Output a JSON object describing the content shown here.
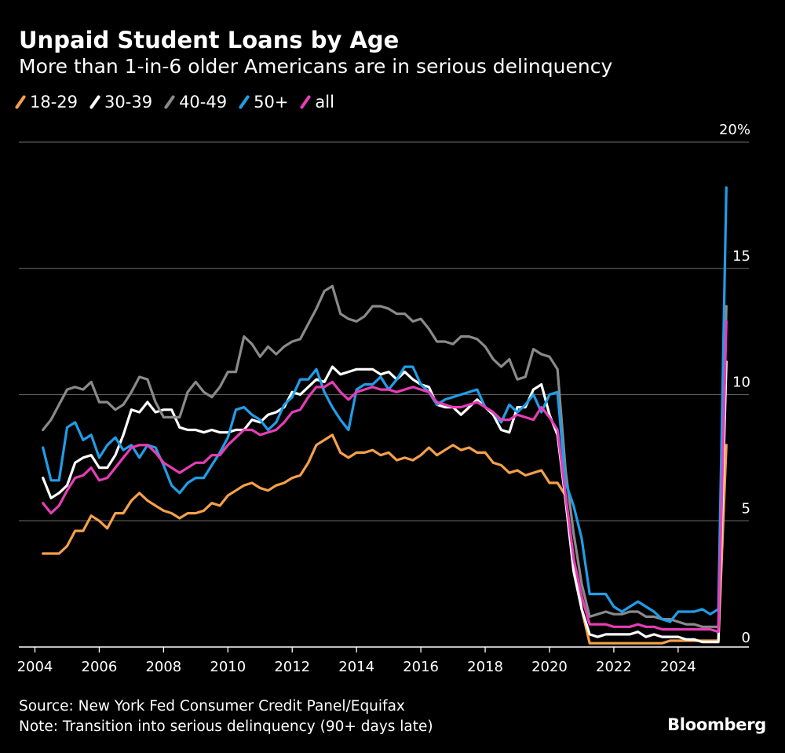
{
  "header": {
    "title": "Unpaid Student Loans by Age",
    "subtitle": "More than 1-in-6 older Americans are in serious delinquency"
  },
  "footer": {
    "source": "Source: New York Fed Consumer Credit Panel/Equifax",
    "note": "Note: Transition into serious delinquency (90+ days late)",
    "logo": "Bloomberg"
  },
  "chart_data": {
    "type": "line",
    "y_unit": "%",
    "ylim": [
      0,
      20
    ],
    "y_ticks": [
      0,
      5,
      10,
      15,
      20
    ],
    "y_tick_labels": [
      "0",
      "5",
      "10",
      "15",
      "20%"
    ],
    "xlim": [
      2003.5,
      2026.2
    ],
    "x_ticks": [
      2004,
      2006,
      2008,
      2010,
      2012,
      2014,
      2016,
      2018,
      2020,
      2022,
      2024
    ],
    "x_tick_labels": [
      "2004",
      "2006",
      "2008",
      "2010",
      "2012",
      "2014",
      "2016",
      "2018",
      "2020",
      "2022",
      "2024"
    ],
    "grid": "horizontal",
    "legend_position": "top-left",
    "x": [
      2004.25,
      2004.5,
      2004.75,
      2005.0,
      2005.25,
      2005.5,
      2005.75,
      2006.0,
      2006.25,
      2006.5,
      2006.75,
      2007.0,
      2007.25,
      2007.5,
      2007.75,
      2008.0,
      2008.25,
      2008.5,
      2008.75,
      2009.0,
      2009.25,
      2009.5,
      2009.75,
      2010.0,
      2010.25,
      2010.5,
      2010.75,
      2011.0,
      2011.25,
      2011.5,
      2011.75,
      2012.0,
      2012.25,
      2012.5,
      2012.75,
      2013.0,
      2013.25,
      2013.5,
      2013.75,
      2014.0,
      2014.25,
      2014.5,
      2014.75,
      2015.0,
      2015.25,
      2015.5,
      2015.75,
      2016.0,
      2016.25,
      2016.5,
      2016.75,
      2017.0,
      2017.25,
      2017.5,
      2017.75,
      2018.0,
      2018.25,
      2018.5,
      2018.75,
      2019.0,
      2019.25,
      2019.5,
      2019.75,
      2020.0,
      2020.25,
      2020.5,
      2020.75,
      2021.0,
      2021.25,
      2021.5,
      2021.75,
      2022.0,
      2022.25,
      2022.5,
      2022.75,
      2023.0,
      2023.25,
      2023.5,
      2023.75,
      2024.0,
      2024.25,
      2024.5,
      2024.75,
      2025.0,
      2025.25,
      2025.5
    ],
    "series": [
      {
        "name": "18-29",
        "color": "#f5a04a",
        "values": [
          3.7,
          3.7,
          3.7,
          4.0,
          4.6,
          4.6,
          5.2,
          5.0,
          4.7,
          5.3,
          5.3,
          5.8,
          6.1,
          5.8,
          5.6,
          5.4,
          5.3,
          5.1,
          5.3,
          5.3,
          5.4,
          5.7,
          5.6,
          6.0,
          6.2,
          6.4,
          6.5,
          6.3,
          6.2,
          6.4,
          6.5,
          6.7,
          6.8,
          7.3,
          8.0,
          8.2,
          8.4,
          7.7,
          7.5,
          7.7,
          7.7,
          7.8,
          7.6,
          7.7,
          7.4,
          7.5,
          7.4,
          7.6,
          7.9,
          7.6,
          7.8,
          8.0,
          7.8,
          7.9,
          7.7,
          7.7,
          7.3,
          7.2,
          6.9,
          7.0,
          6.8,
          6.9,
          7.0,
          6.5,
          6.5,
          6.0,
          3.5,
          1.5,
          0.15,
          0.15,
          0.15,
          0.15,
          0.15,
          0.15,
          0.15,
          0.15,
          0.15,
          0.15,
          0.25,
          0.25,
          0.25,
          0.25,
          0.25,
          0.25,
          0.25,
          8.0
        ]
      },
      {
        "name": "30-39",
        "color": "#ffffff",
        "values": [
          6.7,
          5.9,
          6.1,
          6.4,
          7.3,
          7.5,
          7.6,
          7.1,
          7.1,
          7.6,
          8.4,
          9.4,
          9.3,
          9.7,
          9.3,
          9.4,
          9.4,
          8.7,
          8.6,
          8.6,
          8.5,
          8.6,
          8.5,
          8.5,
          8.6,
          8.6,
          9.0,
          8.9,
          9.2,
          9.3,
          9.5,
          10.1,
          10.0,
          10.3,
          10.6,
          10.5,
          11.1,
          10.8,
          10.9,
          11.0,
          11.0,
          11.0,
          10.8,
          10.9,
          10.6,
          10.9,
          10.6,
          10.4,
          10.3,
          9.6,
          9.5,
          9.5,
          9.2,
          9.5,
          9.8,
          9.5,
          9.2,
          8.6,
          8.5,
          9.5,
          9.5,
          10.2,
          10.4,
          9.2,
          8.4,
          5.8,
          3.0,
          1.5,
          0.5,
          0.4,
          0.5,
          0.5,
          0.5,
          0.5,
          0.6,
          0.4,
          0.5,
          0.4,
          0.4,
          0.4,
          0.3,
          0.3,
          0.2,
          0.2,
          0.2,
          11.3
        ]
      },
      {
        "name": "40-49",
        "color": "#8a8a8a",
        "values": [
          8.6,
          9.0,
          9.6,
          10.2,
          10.3,
          10.2,
          10.5,
          9.7,
          9.7,
          9.4,
          9.6,
          10.1,
          10.7,
          10.6,
          9.7,
          9.1,
          9.1,
          9.1,
          10.1,
          10.5,
          10.1,
          9.9,
          10.3,
          10.9,
          10.9,
          12.3,
          12.0,
          11.5,
          11.9,
          11.6,
          11.9,
          12.1,
          12.2,
          12.8,
          13.4,
          14.1,
          14.3,
          13.2,
          13.0,
          12.9,
          13.1,
          13.5,
          13.5,
          13.4,
          13.2,
          13.2,
          12.9,
          13.0,
          12.6,
          12.1,
          12.1,
          12.0,
          12.3,
          12.3,
          12.2,
          11.9,
          11.4,
          11.1,
          11.4,
          10.6,
          10.7,
          11.8,
          11.6,
          11.5,
          11.0,
          7.0,
          4.5,
          2.5,
          1.2,
          1.3,
          1.4,
          1.3,
          1.3,
          1.4,
          1.4,
          1.2,
          1.2,
          1.1,
          1.1,
          1.0,
          0.9,
          0.9,
          0.8,
          0.8,
          0.8,
          13.5
        ]
      },
      {
        "name": "50+",
        "color": "#1f9ee8",
        "values": [
          7.9,
          6.6,
          6.6,
          8.7,
          8.9,
          8.2,
          8.4,
          7.5,
          8.0,
          8.3,
          7.8,
          8.0,
          7.5,
          8.0,
          7.9,
          7.2,
          6.4,
          6.1,
          6.5,
          6.7,
          6.7,
          7.2,
          7.7,
          8.3,
          9.4,
          9.5,
          9.2,
          9.0,
          8.6,
          8.9,
          9.6,
          9.9,
          10.6,
          10.6,
          11.0,
          10.1,
          9.5,
          9.0,
          8.6,
          10.2,
          10.4,
          10.4,
          10.7,
          10.2,
          10.6,
          11.1,
          11.1,
          10.4,
          10.1,
          9.6,
          9.8,
          9.9,
          10.0,
          10.1,
          10.2,
          9.5,
          9.3,
          8.9,
          9.6,
          9.3,
          9.6,
          10.0,
          9.3,
          10.0,
          10.1,
          6.5,
          5.6,
          4.3,
          2.1,
          2.1,
          2.1,
          1.6,
          1.4,
          1.6,
          1.8,
          1.6,
          1.4,
          1.1,
          1.0,
          1.4,
          1.4,
          1.4,
          1.5,
          1.3,
          1.5,
          18.2
        ]
      },
      {
        "name": "all",
        "color": "#e83cb6",
        "values": [
          5.7,
          5.3,
          5.6,
          6.2,
          6.7,
          6.8,
          7.1,
          6.6,
          6.7,
          7.1,
          7.5,
          7.9,
          8.0,
          8.0,
          7.7,
          7.3,
          7.1,
          6.9,
          7.1,
          7.3,
          7.3,
          7.6,
          7.6,
          8.0,
          8.3,
          8.6,
          8.6,
          8.4,
          8.5,
          8.6,
          8.9,
          9.3,
          9.4,
          9.9,
          10.3,
          10.3,
          10.5,
          10.1,
          9.8,
          10.1,
          10.2,
          10.3,
          10.2,
          10.2,
          10.1,
          10.2,
          10.3,
          10.2,
          10.1,
          9.7,
          9.6,
          9.5,
          9.5,
          9.6,
          9.7,
          9.5,
          9.3,
          9.0,
          9.0,
          9.2,
          9.1,
          9.0,
          9.5,
          9.1,
          8.6,
          6.0,
          3.5,
          2.0,
          0.9,
          0.9,
          0.9,
          0.8,
          0.8,
          0.8,
          0.9,
          0.8,
          0.8,
          0.7,
          0.7,
          0.7,
          0.7,
          0.7,
          0.7,
          0.7,
          0.6,
          12.9
        ]
      }
    ]
  }
}
